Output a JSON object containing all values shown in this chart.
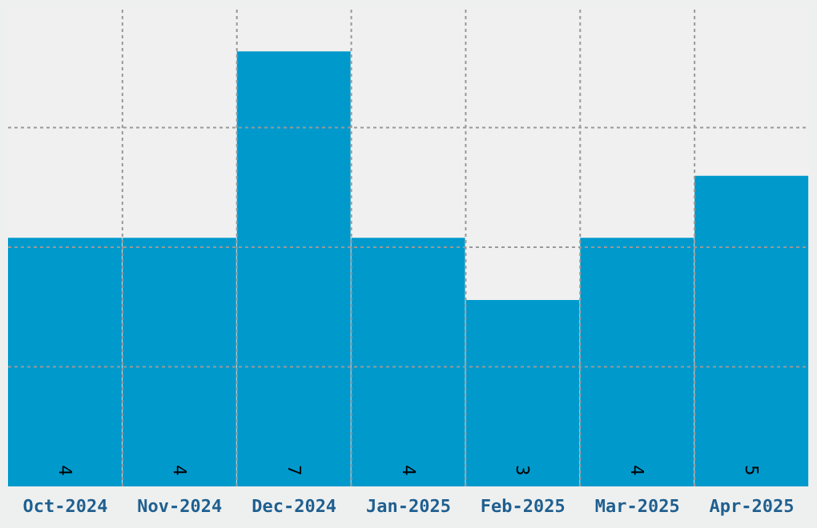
{
  "chart_data": {
    "type": "bar",
    "categories": [
      "Oct-2024",
      "Nov-2024",
      "Dec-2024",
      "Jan-2025",
      "Feb-2025",
      "Mar-2025",
      "Apr-2025"
    ],
    "values": [
      4,
      4,
      7,
      4,
      3,
      4,
      5
    ],
    "color": "#0099cc",
    "data_labels": true,
    "grid": true
  }
}
